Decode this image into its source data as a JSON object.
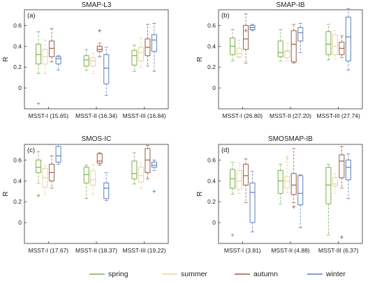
{
  "legend": {
    "items": [
      {
        "label": "spring",
        "color": "#77b04f"
      },
      {
        "label": "summer",
        "color": "#e9d49b"
      },
      {
        "label": "autumn",
        "color": "#9c5b45"
      },
      {
        "label": "winter",
        "color": "#5b7fc3"
      }
    ]
  },
  "chart_data": [
    {
      "type": "box",
      "title": "SMAP-L3",
      "panel_label": "(a)",
      "ylabel": "R",
      "ylim": [
        -0.2,
        0.75
      ],
      "yticks": [
        "0",
        "0.2",
        "0.4",
        "0.6"
      ],
      "categories": [
        "MSST-I (15.65)",
        "MSST-II (16.34)",
        "MSST-III (16.84)"
      ],
      "series": [
        {
          "name": "spring",
          "boxes": [
            {
              "min": 0.14,
              "q1": 0.23,
              "median": 0.32,
              "q3": 0.42,
              "max": 0.54,
              "outliers": [
                -0.15
              ]
            },
            {
              "min": 0.17,
              "q1": 0.21,
              "median": 0.27,
              "q3": 0.31,
              "max": 0.37,
              "outliers": []
            },
            {
              "min": 0.16,
              "q1": 0.22,
              "median": 0.31,
              "q3": 0.36,
              "max": 0.41,
              "outliers": []
            }
          ]
        },
        {
          "name": "summer",
          "boxes": [
            {
              "min": 0.14,
              "q1": 0.23,
              "median": 0.3,
              "q3": 0.37,
              "max": 0.46,
              "outliers": []
            },
            {
              "min": 0.14,
              "q1": 0.21,
              "median": 0.26,
              "q3": 0.29,
              "max": 0.33,
              "outliers": []
            },
            {
              "min": 0.2,
              "q1": 0.26,
              "median": 0.34,
              "q3": 0.39,
              "max": 0.48,
              "outliers": []
            }
          ]
        },
        {
          "name": "autumn",
          "boxes": [
            {
              "min": 0.25,
              "q1": 0.3,
              "median": 0.38,
              "q3": 0.45,
              "max": 0.57,
              "outliers": []
            },
            {
              "min": 0.3,
              "q1": 0.35,
              "median": 0.37,
              "q3": 0.4,
              "max": 0.43,
              "outliers": [
                0.55
              ]
            },
            {
              "min": 0.21,
              "q1": 0.31,
              "median": 0.39,
              "q3": 0.47,
              "max": 0.61,
              "outliers": []
            }
          ]
        },
        {
          "name": "winter",
          "boxes": [
            {
              "min": 0.17,
              "q1": 0.23,
              "median": 0.28,
              "q3": 0.3,
              "max": 0.31,
              "outliers": []
            },
            {
              "min": -0.07,
              "q1": 0.04,
              "median": 0.19,
              "q3": 0.32,
              "max": 0.39,
              "outliers": []
            },
            {
              "min": 0.16,
              "q1": 0.35,
              "median": 0.46,
              "q3": 0.51,
              "max": 0.62,
              "outliers": []
            }
          ]
        }
      ]
    },
    {
      "type": "box",
      "title": "SMAP-IB",
      "panel_label": "(b)",
      "ylabel": "R",
      "ylim": [
        -0.2,
        0.75
      ],
      "yticks": [
        "0",
        "0.2",
        "0.4",
        "0.6"
      ],
      "categories": [
        "MSST-I (26.80)",
        "MSST-II (27.20)",
        "MSST-III (27.74)"
      ],
      "series": [
        {
          "name": "spring",
          "boxes": [
            {
              "min": 0.26,
              "q1": 0.32,
              "median": 0.4,
              "q3": 0.48,
              "max": 0.56,
              "outliers": []
            },
            {
              "min": 0.26,
              "q1": 0.3,
              "median": 0.34,
              "q3": 0.45,
              "max": 0.56,
              "outliers": []
            },
            {
              "min": 0.27,
              "q1": 0.32,
              "median": 0.42,
              "q3": 0.54,
              "max": 0.61,
              "outliers": []
            }
          ]
        },
        {
          "name": "summer",
          "boxes": [
            {
              "min": 0.29,
              "q1": 0.3,
              "median": 0.33,
              "q3": 0.38,
              "max": 0.46,
              "outliers": []
            },
            {
              "min": 0.26,
              "q1": 0.29,
              "median": 0.35,
              "q3": 0.36,
              "max": 0.43,
              "outliers": []
            },
            {
              "min": 0.28,
              "q1": 0.32,
              "median": 0.4,
              "q3": 0.51,
              "max": 0.55,
              "outliers": []
            }
          ]
        },
        {
          "name": "autumn",
          "boxes": [
            {
              "min": 0.24,
              "q1": 0.37,
              "median": 0.47,
              "q3": 0.6,
              "max": 0.71,
              "outliers": [
                0.55
              ]
            },
            {
              "min": 0.24,
              "q1": 0.25,
              "median": 0.42,
              "q3": 0.55,
              "max": 0.61,
              "outliers": []
            },
            {
              "min": 0.29,
              "q1": 0.32,
              "median": 0.38,
              "q3": 0.44,
              "max": 0.5,
              "outliers": []
            }
          ]
        },
        {
          "name": "winter",
          "boxes": [
            {
              "min": 0.55,
              "q1": 0.56,
              "median": 0.58,
              "q3": 0.6,
              "max": 0.61,
              "outliers": []
            },
            {
              "min": 0.34,
              "q1": 0.45,
              "median": 0.53,
              "q3": 0.58,
              "max": 0.62,
              "outliers": []
            },
            {
              "min": 0.17,
              "q1": 0.26,
              "median": 0.49,
              "q3": 0.68,
              "max": 0.76,
              "outliers": []
            }
          ]
        }
      ]
    },
    {
      "type": "box",
      "title": "SMOS-IC",
      "panel_label": "(c)",
      "ylabel": "R",
      "ylim": [
        -0.2,
        0.75
      ],
      "yticks": [
        "0",
        "0.2",
        "0.4",
        "0.6"
      ],
      "categories": [
        "MSST-I (17.67)",
        "MSST-II (18.37)",
        "MSST-III (19.22)"
      ],
      "series": [
        {
          "name": "spring",
          "boxes": [
            {
              "min": 0.38,
              "q1": 0.48,
              "median": 0.53,
              "q3": 0.6,
              "max": 0.68,
              "outliers": [
                0.26
              ]
            },
            {
              "min": 0.23,
              "q1": 0.38,
              "median": 0.46,
              "q3": 0.53,
              "max": 0.55,
              "outliers": []
            },
            {
              "min": 0.37,
              "q1": 0.42,
              "median": 0.47,
              "q3": 0.59,
              "max": 0.67,
              "outliers": []
            }
          ]
        },
        {
          "name": "summer",
          "boxes": [
            {
              "min": 0.27,
              "q1": 0.34,
              "median": 0.43,
              "q3": 0.52,
              "max": 0.55,
              "outliers": []
            },
            {
              "min": 0.27,
              "q1": 0.36,
              "median": 0.41,
              "q3": 0.5,
              "max": 0.56,
              "outliers": []
            },
            {
              "min": 0.33,
              "q1": 0.39,
              "median": 0.45,
              "q3": 0.53,
              "max": 0.57,
              "outliers": []
            }
          ]
        },
        {
          "name": "autumn",
          "boxes": [
            {
              "min": 0.33,
              "q1": 0.4,
              "median": 0.48,
              "q3": 0.56,
              "max": 0.64,
              "outliers": []
            },
            {
              "min": 0.55,
              "q1": 0.57,
              "median": 0.59,
              "q3": 0.66,
              "max": 0.67,
              "outliers": []
            },
            {
              "min": 0.42,
              "q1": 0.48,
              "median": 0.6,
              "q3": 0.71,
              "max": 0.74,
              "outliers": []
            }
          ]
        },
        {
          "name": "winter",
          "boxes": [
            {
              "min": 0.56,
              "q1": 0.58,
              "median": 0.64,
              "q3": 0.73,
              "max": 0.75,
              "outliers": []
            },
            {
              "min": 0.21,
              "q1": 0.23,
              "median": 0.33,
              "q3": 0.38,
              "max": 0.48,
              "outliers": []
            },
            {
              "min": 0.5,
              "q1": 0.53,
              "median": 0.55,
              "q3": 0.58,
              "max": 0.6,
              "outliers": [
                0.3
              ]
            }
          ]
        }
      ]
    },
    {
      "type": "box",
      "title": "SMOSMAP-IB",
      "panel_label": "(d)",
      "ylabel": "R",
      "ylim": [
        -0.2,
        0.75
      ],
      "yticks": [
        "0",
        "0.2",
        "0.4",
        "0.6"
      ],
      "categories": [
        "MSST-I (3.81)",
        "MSST-II (4.88)",
        "MSST-III (6.37)"
      ],
      "series": [
        {
          "name": "spring",
          "boxes": [
            {
              "min": 0.27,
              "q1": 0.33,
              "median": 0.42,
              "q3": 0.51,
              "max": 0.58,
              "outliers": [
                -0.12
              ]
            },
            {
              "min": 0.18,
              "q1": 0.28,
              "median": 0.4,
              "q3": 0.5,
              "max": 0.56,
              "outliers": []
            },
            {
              "min": -0.12,
              "q1": 0.18,
              "median": 0.36,
              "q3": 0.53,
              "max": 0.56,
              "outliers": []
            }
          ]
        },
        {
          "name": "summer",
          "boxes": [
            {
              "min": 0.28,
              "q1": 0.32,
              "median": 0.4,
              "q3": 0.5,
              "max": 0.57,
              "outliers": []
            },
            {
              "min": 0.29,
              "q1": 0.33,
              "median": 0.4,
              "q3": 0.44,
              "max": 0.58,
              "outliers": [
                0.63,
                0.61
              ]
            },
            {
              "min": 0.28,
              "q1": 0.35,
              "median": 0.37,
              "q3": 0.43,
              "max": 0.47,
              "outliers": []
            }
          ]
        },
        {
          "name": "autumn",
          "boxes": [
            {
              "min": 0.19,
              "q1": 0.36,
              "median": 0.45,
              "q3": 0.56,
              "max": 0.61,
              "outliers": []
            },
            {
              "min": 0.19,
              "q1": 0.27,
              "median": 0.36,
              "q3": 0.47,
              "max": 0.71,
              "outliers": [
                0.15
              ]
            },
            {
              "min": 0.33,
              "q1": 0.43,
              "median": 0.59,
              "q3": 0.65,
              "max": 0.73,
              "outliers": [
                -0.14
              ]
            }
          ]
        },
        {
          "name": "winter",
          "boxes": [
            {
              "min": -0.09,
              "q1": 0.0,
              "median": 0.29,
              "q3": 0.38,
              "max": 0.49,
              "outliers": []
            },
            {
              "min": -0.05,
              "q1": 0.17,
              "median": 0.28,
              "q3": 0.45,
              "max": 0.46,
              "outliers": []
            },
            {
              "min": 0.23,
              "q1": 0.41,
              "median": 0.53,
              "q3": 0.6,
              "max": 0.66,
              "outliers": []
            }
          ]
        }
      ]
    }
  ]
}
